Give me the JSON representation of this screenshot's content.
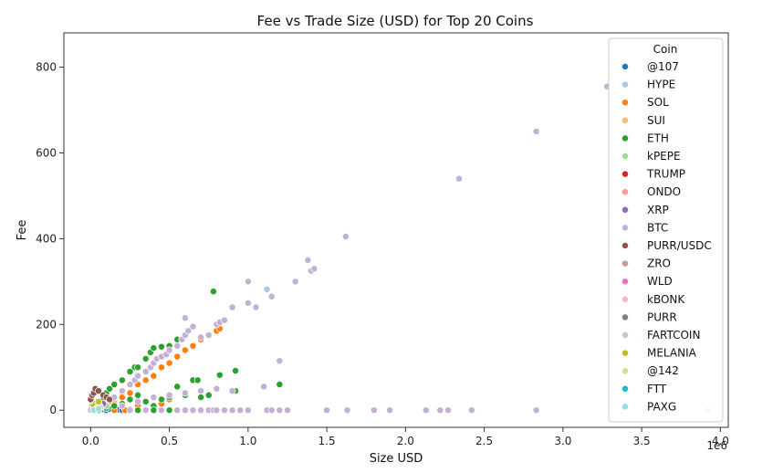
{
  "chart_data": {
    "type": "scatter",
    "title": "Fee vs Trade Size (USD) for Top 20 Coins",
    "xlabel": "Size USD",
    "ylabel": "Fee",
    "x_scale_label": "1e6",
    "xlim": [
      -0.17,
      4.05
    ],
    "ylim": [
      -40,
      880
    ],
    "x_ticks": [
      0.0,
      0.5,
      1.0,
      1.5,
      2.0,
      2.5,
      3.0,
      3.5,
      4.0
    ],
    "x_tick_labels": [
      "0.0",
      "0.5",
      "1.0",
      "1.5",
      "2.0",
      "2.5",
      "3.0",
      "3.5",
      "4.0"
    ],
    "y_ticks": [
      0,
      200,
      400,
      600,
      800
    ],
    "y_tick_labels": [
      "0",
      "200",
      "400",
      "600",
      "800"
    ],
    "grid": false,
    "legend": {
      "title": "Coin",
      "placement": "top-right",
      "entries": [
        "@107",
        "HYPE",
        "SOL",
        "SUI",
        "ETH",
        "kPEPE",
        "TRUMP",
        "ONDO",
        "XRP",
        "BTC",
        "PURR/USDC",
        "ZRO",
        "WLD",
        "kBONK",
        "PURR",
        "FARTCOIN",
        "MELANIA",
        "@142",
        "FTT",
        "PAXG"
      ]
    },
    "series": [
      {
        "name": "@107",
        "color": "#1f77b4",
        "points": [
          [
            0.05,
            0
          ],
          [
            0.08,
            2
          ],
          [
            0.1,
            0
          ],
          [
            0.12,
            3
          ],
          [
            0.15,
            0
          ],
          [
            0.18,
            1
          ],
          [
            0.2,
            0
          ],
          [
            0.25,
            2
          ],
          [
            0.4,
            0
          ],
          [
            0.45,
            0
          ]
        ]
      },
      {
        "name": "HYPE",
        "color": "#aec7e8",
        "points": [
          [
            0.05,
            5
          ],
          [
            0.1,
            15
          ],
          [
            0.15,
            25
          ],
          [
            0.2,
            40
          ],
          [
            0.3,
            60
          ],
          [
            1.12,
            282
          ]
        ]
      },
      {
        "name": "SOL",
        "color": "#ff7f0e",
        "points": [
          [
            0.02,
            0
          ],
          [
            0.05,
            5
          ],
          [
            0.08,
            10
          ],
          [
            0.1,
            15
          ],
          [
            0.12,
            20
          ],
          [
            0.15,
            25
          ],
          [
            0.2,
            30
          ],
          [
            0.25,
            40
          ],
          [
            0.3,
            60
          ],
          [
            0.35,
            70
          ],
          [
            0.4,
            80
          ],
          [
            0.45,
            100
          ],
          [
            0.5,
            110
          ],
          [
            0.55,
            125
          ],
          [
            0.6,
            140
          ],
          [
            0.65,
            150
          ],
          [
            0.7,
            165
          ],
          [
            0.75,
            175
          ],
          [
            0.8,
            185
          ],
          [
            0.82,
            190
          ],
          [
            0.1,
            5
          ],
          [
            0.2,
            10
          ],
          [
            0.25,
            25
          ],
          [
            0.3,
            10
          ],
          [
            0.35,
            20
          ],
          [
            0.45,
            15
          ],
          [
            0.5,
            25
          ],
          [
            0.15,
            0
          ],
          [
            0.22,
            0
          ]
        ]
      },
      {
        "name": "SUI",
        "color": "#ffbb78",
        "points": [
          [
            0.02,
            0
          ],
          [
            0.05,
            3
          ],
          [
            0.08,
            8
          ],
          [
            0.1,
            12
          ],
          [
            0.15,
            18
          ]
        ]
      },
      {
        "name": "ETH",
        "color": "#2ca02c",
        "points": [
          [
            0.0,
            0
          ],
          [
            0.02,
            5
          ],
          [
            0.05,
            15
          ],
          [
            0.08,
            25
          ],
          [
            0.1,
            40
          ],
          [
            0.12,
            50
          ],
          [
            0.15,
            60
          ],
          [
            0.2,
            70
          ],
          [
            0.25,
            90
          ],
          [
            0.28,
            100
          ],
          [
            0.3,
            100
          ],
          [
            0.35,
            120
          ],
          [
            0.38,
            135
          ],
          [
            0.4,
            145
          ],
          [
            0.45,
            148
          ],
          [
            0.5,
            150
          ],
          [
            0.55,
            165
          ],
          [
            0.78,
            277
          ],
          [
            0.05,
            0
          ],
          [
            0.1,
            5
          ],
          [
            0.15,
            10
          ],
          [
            0.2,
            15
          ],
          [
            0.25,
            25
          ],
          [
            0.3,
            35
          ],
          [
            0.35,
            20
          ],
          [
            0.4,
            10
          ],
          [
            0.45,
            25
          ],
          [
            0.5,
            30
          ],
          [
            0.55,
            55
          ],
          [
            0.6,
            35
          ],
          [
            0.65,
            70
          ],
          [
            0.68,
            70
          ],
          [
            0.7,
            30
          ],
          [
            0.75,
            35
          ],
          [
            0.82,
            82
          ],
          [
            0.92,
            92
          ],
          [
            0.92,
            45
          ],
          [
            1.2,
            60
          ],
          [
            0.3,
            0
          ],
          [
            0.4,
            0
          ],
          [
            0.5,
            0
          ]
        ]
      },
      {
        "name": "kPEPE",
        "color": "#98df8a",
        "points": [
          [
            0.02,
            0
          ],
          [
            0.05,
            5
          ],
          [
            0.1,
            10
          ]
        ]
      },
      {
        "name": "TRUMP",
        "color": "#d62728",
        "points": [
          [
            0.02,
            0
          ],
          [
            0.04,
            3
          ],
          [
            0.06,
            6
          ]
        ]
      },
      {
        "name": "ONDO",
        "color": "#ff9896",
        "points": [
          [
            0.02,
            0
          ],
          [
            0.04,
            5
          ],
          [
            0.06,
            10
          ],
          [
            0.08,
            15
          ]
        ]
      },
      {
        "name": "XRP",
        "color": "#9467bd",
        "points": [
          [
            0.02,
            0
          ],
          [
            0.05,
            8
          ],
          [
            0.08,
            15
          ]
        ]
      },
      {
        "name": "BTC",
        "color": "#c5b0d5",
        "points": [
          [
            0.15,
            30
          ],
          [
            0.2,
            45
          ],
          [
            0.25,
            60
          ],
          [
            0.28,
            70
          ],
          [
            0.3,
            80
          ],
          [
            0.35,
            90
          ],
          [
            0.38,
            100
          ],
          [
            0.4,
            110
          ],
          [
            0.42,
            120
          ],
          [
            0.45,
            125
          ],
          [
            0.48,
            130
          ],
          [
            0.5,
            140
          ],
          [
            0.55,
            150
          ],
          [
            0.58,
            165
          ],
          [
            0.6,
            175
          ],
          [
            0.62,
            185
          ],
          [
            0.65,
            195
          ],
          [
            0.6,
            215
          ],
          [
            0.7,
            170
          ],
          [
            0.75,
            175
          ],
          [
            0.8,
            200
          ],
          [
            0.82,
            205
          ],
          [
            0.85,
            210
          ],
          [
            0.9,
            240
          ],
          [
            1.0,
            250
          ],
          [
            1.05,
            240
          ],
          [
            1.0,
            300
          ],
          [
            1.15,
            265
          ],
          [
            1.3,
            300
          ],
          [
            1.38,
            350
          ],
          [
            1.4,
            325
          ],
          [
            1.42,
            330
          ],
          [
            1.62,
            405
          ],
          [
            2.34,
            540
          ],
          [
            2.83,
            650
          ],
          [
            3.28,
            755
          ],
          [
            1.1,
            55
          ],
          [
            1.2,
            115
          ],
          [
            0.2,
            10
          ],
          [
            0.3,
            20
          ],
          [
            0.4,
            30
          ],
          [
            0.5,
            35
          ],
          [
            0.6,
            40
          ],
          [
            0.7,
            45
          ],
          [
            0.8,
            50
          ],
          [
            0.9,
            45
          ],
          [
            0.25,
            0
          ],
          [
            0.35,
            0
          ],
          [
            0.45,
            0
          ],
          [
            0.55,
            0
          ],
          [
            0.6,
            0
          ],
          [
            0.65,
            0
          ],
          [
            0.7,
            0
          ],
          [
            0.75,
            0
          ],
          [
            0.78,
            0
          ],
          [
            0.8,
            0
          ],
          [
            0.85,
            0
          ],
          [
            0.9,
            0
          ],
          [
            0.95,
            0
          ],
          [
            1.0,
            0
          ],
          [
            1.12,
            0
          ],
          [
            1.15,
            0
          ],
          [
            1.2,
            0
          ],
          [
            1.25,
            0
          ],
          [
            1.5,
            0
          ],
          [
            1.63,
            0
          ],
          [
            1.8,
            0
          ],
          [
            1.9,
            0
          ],
          [
            2.13,
            0
          ],
          [
            2.22,
            0
          ],
          [
            2.27,
            0
          ],
          [
            2.42,
            0
          ],
          [
            2.83,
            0
          ]
        ]
      },
      {
        "name": "PURR/USDC",
        "color": "#8c564b",
        "points": [
          [
            0.0,
            25
          ],
          [
            0.01,
            35
          ],
          [
            0.02,
            40
          ],
          [
            0.03,
            50
          ],
          [
            0.05,
            45
          ],
          [
            0.08,
            35
          ],
          [
            0.1,
            30
          ],
          [
            0.12,
            25
          ]
        ]
      },
      {
        "name": "ZRO",
        "color": "#c49c94",
        "points": [
          [
            0.01,
            10
          ],
          [
            0.03,
            15
          ],
          [
            0.05,
            20
          ]
        ]
      },
      {
        "name": "WLD",
        "color": "#e377c2",
        "points": [
          [
            0.02,
            5
          ],
          [
            0.04,
            8
          ]
        ]
      },
      {
        "name": "kBONK",
        "color": "#f7b6d2",
        "points": [
          [
            0.02,
            3
          ],
          [
            0.04,
            6
          ],
          [
            0.06,
            9
          ]
        ]
      },
      {
        "name": "PURR",
        "color": "#7f7f7f",
        "points": [
          [
            0.02,
            0
          ],
          [
            0.03,
            2
          ],
          [
            0.05,
            5
          ]
        ]
      },
      {
        "name": "FARTCOIN",
        "color": "#c7c7c7",
        "points": [
          [
            0.0,
            0
          ],
          [
            0.02,
            2
          ],
          [
            0.04,
            4
          ],
          [
            0.06,
            6
          ],
          [
            3.52,
            170
          ],
          [
            3.92,
            0
          ]
        ]
      },
      {
        "name": "MELANIA",
        "color": "#bcbd22",
        "points": [
          [
            0.02,
            10
          ],
          [
            0.05,
            20
          ]
        ]
      },
      {
        "name": "@142",
        "color": "#dbdb8d",
        "points": [
          [
            0.02,
            0
          ],
          [
            0.04,
            5
          ]
        ]
      },
      {
        "name": "FTT",
        "color": "#17becf",
        "points": [
          [
            0.02,
            0
          ],
          [
            0.03,
            1
          ]
        ]
      },
      {
        "name": "PAXG",
        "color": "#9edae5",
        "points": [
          [
            0.02,
            0
          ],
          [
            0.05,
            3
          ]
        ]
      }
    ]
  }
}
